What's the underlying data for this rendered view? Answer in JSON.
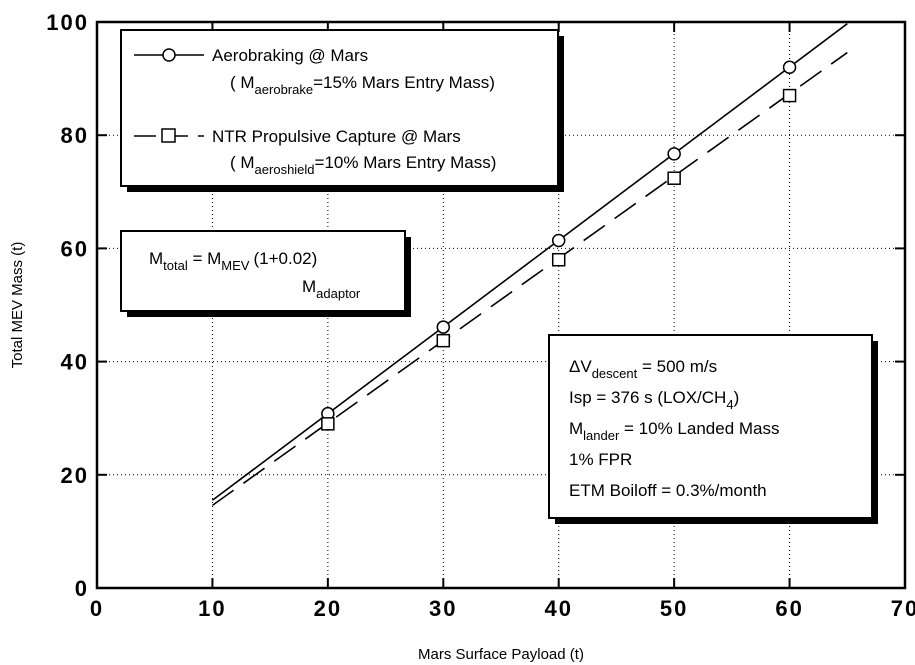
{
  "chart_data": {
    "type": "line",
    "xlabel": "Mars Surface Payload (t)",
    "ylabel": "Total MEV Mass (t)",
    "xlim": [
      0,
      70
    ],
    "ylim": [
      0,
      100
    ],
    "x_ticks": [
      "0",
      "10",
      "20",
      "30",
      "40",
      "50",
      "60",
      "70"
    ],
    "y_ticks": [
      "0",
      "20",
      "40",
      "60",
      "80",
      "100"
    ],
    "grid": "dotted",
    "legend_position": "top-left",
    "series": [
      {
        "name": "Aerobraking @ Mars",
        "name_note": {
          "open": "( M",
          "sub": "aerobrake",
          "rest": "=15% Mars Entry Mass)"
        },
        "marker": "circle",
        "line_style": "solid",
        "x": [
          20,
          30,
          40,
          50,
          60
        ],
        "y": [
          30.8,
          46.1,
          61.4,
          76.7,
          92.0
        ],
        "fit_line": {
          "x": [
            10,
            65
          ],
          "y": [
            15.5,
            99.7
          ]
        }
      },
      {
        "name": "NTR Propulsive Capture @ Mars",
        "name_note": {
          "open": "( M",
          "sub": "aeroshield",
          "rest": "=10% Mars Entry Mass)"
        },
        "marker": "square",
        "line_style": "dashed",
        "x": [
          20,
          30,
          40,
          50,
          60
        ],
        "y": [
          29.0,
          43.7,
          58.0,
          72.4,
          87.0
        ],
        "fit_line": {
          "x": [
            10,
            65
          ],
          "y": [
            14.6,
            94.6
          ]
        }
      }
    ],
    "annotations": {
      "formula": {
        "lhs": "M",
        "lhs_sub": "total",
        "eq": " = M",
        "rhs_sub": "MEV",
        "factor": "(1+0.02)",
        "below_m": "M",
        "below_sub": "adaptor"
      },
      "assumptions": [
        {
          "pre": "ΔV",
          "sub": "descent",
          "post": " = 500 m/s"
        },
        {
          "pre": "Isp = 376 s (LOX/CH",
          "sub": "4",
          "post": ")"
        },
        {
          "pre": "M",
          "sub": "lander",
          "post": " = 10% Landed Mass"
        },
        {
          "pre": "1% FPR",
          "sub": "",
          "post": ""
        },
        {
          "pre": "ETM Boiloff = 0.3%/month",
          "sub": "",
          "post": ""
        }
      ]
    }
  }
}
